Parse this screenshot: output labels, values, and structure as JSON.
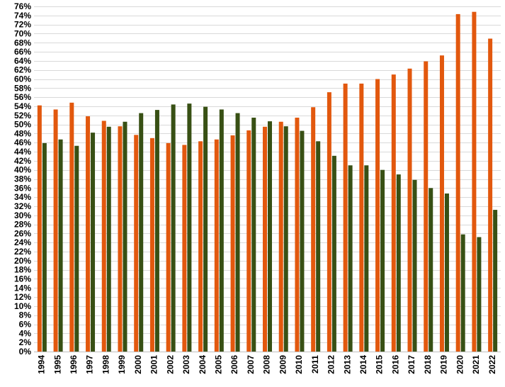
{
  "chart_data": {
    "type": "bar",
    "title": "",
    "xlabel": "",
    "ylabel": "",
    "ylim": [
      0,
      76
    ],
    "y_unit": "%",
    "y_tick_step": 2,
    "grid": true,
    "legend": "none",
    "categories": [
      "1994",
      "1995",
      "1996",
      "1997",
      "1998",
      "1999",
      "2000",
      "2001",
      "2002",
      "2003",
      "2004",
      "2005",
      "2006",
      "2007",
      "2008",
      "2009",
      "2010",
      "2011",
      "2012",
      "2013",
      "2014",
      "2015",
      "2016",
      "2017",
      "2018",
      "2019",
      "2020",
      "2021",
      "2022"
    ],
    "series": [
      {
        "color": "#e2580e",
        "values": [
          54.2,
          53.3,
          54.8,
          51.8,
          50.8,
          49.6,
          47.7,
          47.0,
          45.9,
          45.5,
          46.3,
          46.7,
          47.6,
          48.7,
          49.5,
          50.6,
          51.5,
          53.8,
          57.1,
          59.0,
          59.0,
          60.0,
          61.0,
          62.3,
          63.9,
          65.2,
          74.3,
          74.8,
          68.9
        ]
      },
      {
        "color": "#385014",
        "values": [
          45.9,
          46.7,
          45.3,
          48.2,
          49.5,
          50.6,
          52.5,
          53.2,
          54.4,
          54.6,
          53.9,
          53.3,
          52.5,
          51.5,
          50.7,
          49.6,
          48.6,
          46.3,
          43.1,
          41.0,
          41.0,
          40.0,
          39.0,
          37.8,
          36.0,
          34.8,
          25.8,
          25.2,
          31.2
        ]
      }
    ]
  }
}
